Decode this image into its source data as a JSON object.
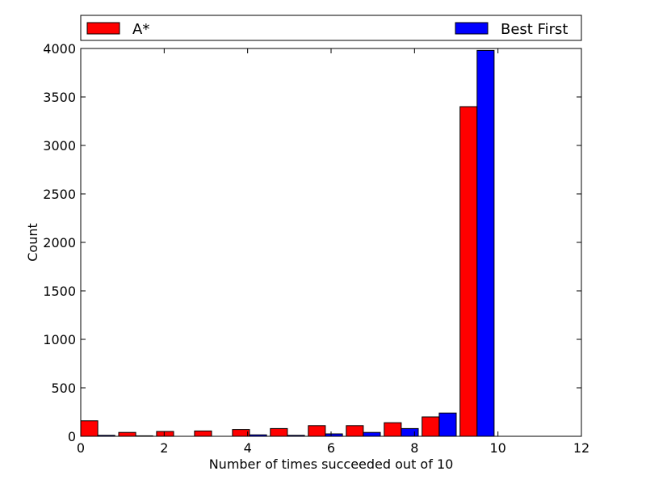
{
  "chart_data": {
    "type": "bar",
    "title": "",
    "xlabel": "Number of times succeeded out of 10",
    "ylabel": "Count",
    "xlim": [
      0,
      12
    ],
    "ylim": [
      0,
      4000
    ],
    "x_ticks": [
      0,
      2,
      4,
      6,
      8,
      10,
      12
    ],
    "y_ticks": [
      0,
      500,
      1000,
      1500,
      2000,
      2500,
      3000,
      3500,
      4000
    ],
    "grid": false,
    "legend": {
      "placement": "top, above plot",
      "entries": [
        "A*",
        "Best First"
      ]
    },
    "categories": [
      0,
      1,
      2,
      3,
      4,
      5,
      6,
      7,
      8,
      9,
      10
    ],
    "series": [
      {
        "name": "A*",
        "color": "#ff0000",
        "values": [
          160,
          40,
          50,
          55,
          70,
          80,
          110,
          110,
          140,
          200,
          3400
        ]
      },
      {
        "name": "Best First",
        "color": "#0000ff",
        "values": [
          10,
          5,
          0,
          0,
          15,
          10,
          25,
          40,
          80,
          240,
          3980
        ]
      }
    ]
  }
}
